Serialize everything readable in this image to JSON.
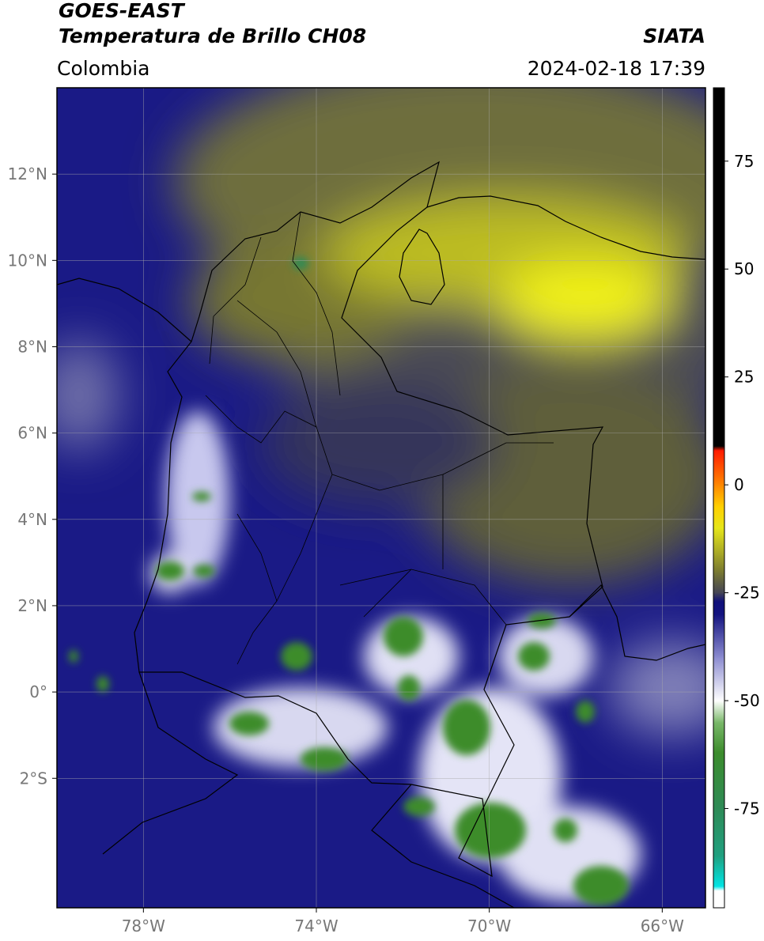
{
  "header": {
    "title": "GOES-EAST",
    "subtitle": "Temperatura de Brillo CH08",
    "region": "Colombia",
    "source": "SIATA",
    "datetime": "2024-02-18 17:39"
  },
  "map": {
    "lon_extent": [
      -80,
      -65
    ],
    "lat_extent": [
      -5,
      14
    ],
    "grid": true,
    "lon_ticks": [
      {
        "value": -78,
        "label": "78°W"
      },
      {
        "value": -74,
        "label": "74°W"
      },
      {
        "value": -70,
        "label": "70°W"
      },
      {
        "value": -66,
        "label": "66°W"
      }
    ],
    "lat_ticks": [
      {
        "value": 12,
        "label": "12°N"
      },
      {
        "value": 10,
        "label": "10°N"
      },
      {
        "value": 8,
        "label": "8°N"
      },
      {
        "value": 6,
        "label": "6°N"
      },
      {
        "value": 4,
        "label": "4°N"
      },
      {
        "value": 2,
        "label": "2°N"
      },
      {
        "value": 0,
        "label": "0°"
      },
      {
        "value": -2,
        "label": "2°S"
      }
    ]
  },
  "colorbar": {
    "lim": [
      -98,
      92
    ],
    "ticks": [
      75,
      50,
      25,
      0,
      -25,
      -50,
      -75
    ],
    "stops": [
      {
        "value": -98,
        "color": "#ffffff"
      },
      {
        "value": -94,
        "color": "#ffffff"
      },
      {
        "value": -93,
        "color": "#00e5e5"
      },
      {
        "value": -86,
        "color": "#20a080"
      },
      {
        "value": -75,
        "color": "#2e8b57"
      },
      {
        "value": -62,
        "color": "#3c8c2c"
      },
      {
        "value": -55,
        "color": "#7ab86a"
      },
      {
        "value": -50,
        "color": "#ffffff"
      },
      {
        "value": -40,
        "color": "#8c8cd0"
      },
      {
        "value": -30,
        "color": "#141480"
      },
      {
        "value": -27,
        "color": "#10107a"
      },
      {
        "value": -25,
        "color": "#444455"
      },
      {
        "value": -20,
        "color": "#7a7a30"
      },
      {
        "value": -10,
        "color": "#e6e61a"
      },
      {
        "value": -5,
        "color": "#ffd000"
      },
      {
        "value": 0,
        "color": "#ff8800"
      },
      {
        "value": 8,
        "color": "#ff1a00"
      },
      {
        "value": 9,
        "color": "#000000"
      },
      {
        "value": 92,
        "color": "#000000"
      }
    ]
  }
}
